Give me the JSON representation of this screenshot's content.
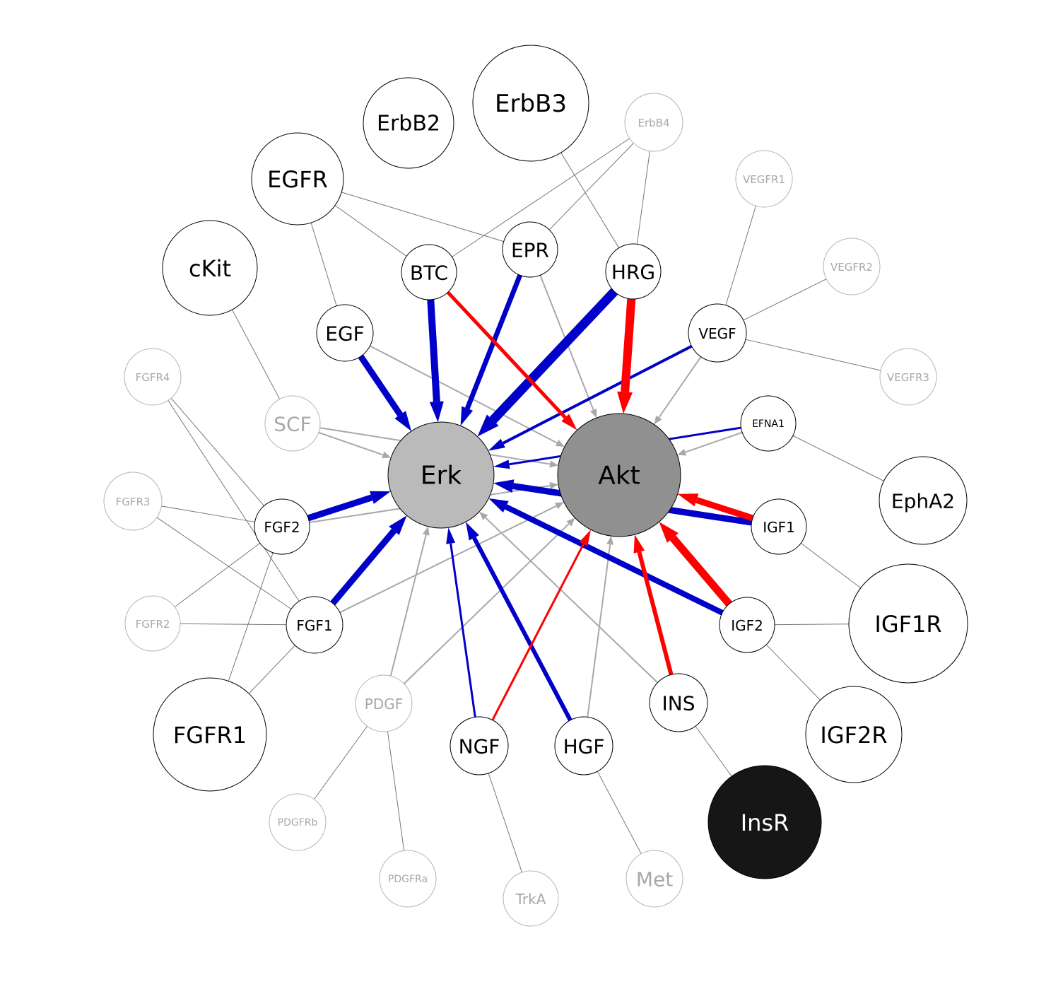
{
  "colors": {
    "blue": "#0000c8",
    "red": "#ff0000",
    "gray_edge": "#a8a8a8",
    "thin_edge": "#777777",
    "node_stroke": "#000000",
    "faded_stroke": "#b4b4b4",
    "faded_text": "#a8a8a8",
    "erk_fill": "#bababa",
    "akt_fill": "#909090",
    "insr_fill": "#161616"
  },
  "nodes": [
    {
      "id": "Erk",
      "label": "Erk",
      "style": "erk"
    },
    {
      "id": "Akt",
      "label": "Akt",
      "style": "akt"
    },
    {
      "id": "ErbB2",
      "label": "ErbB2",
      "style": "normal"
    },
    {
      "id": "ErbB3",
      "label": "ErbB3",
      "style": "normal"
    },
    {
      "id": "ErbB4",
      "label": "ErbB4",
      "style": "faded"
    },
    {
      "id": "EGFR",
      "label": "EGFR",
      "style": "normal"
    },
    {
      "id": "cKit",
      "label": "cKit",
      "style": "normal"
    },
    {
      "id": "BTC",
      "label": "BTC",
      "style": "normal"
    },
    {
      "id": "EPR",
      "label": "EPR",
      "style": "normal"
    },
    {
      "id": "HRG",
      "label": "HRG",
      "style": "normal"
    },
    {
      "id": "EGF",
      "label": "EGF",
      "style": "normal"
    },
    {
      "id": "VEGF",
      "label": "VEGF",
      "style": "normal"
    },
    {
      "id": "VEGFR1",
      "label": "VEGFR1",
      "style": "faded"
    },
    {
      "id": "VEGFR2",
      "label": "VEGFR2",
      "style": "faded"
    },
    {
      "id": "VEGFR3",
      "label": "VEGFR3",
      "style": "faded"
    },
    {
      "id": "EFNA1",
      "label": "EFNA1",
      "style": "normal"
    },
    {
      "id": "EphA2",
      "label": "EphA2",
      "style": "normal"
    },
    {
      "id": "FGFR4",
      "label": "FGFR4",
      "style": "faded"
    },
    {
      "id": "SCF",
      "label": "SCF",
      "style": "faded"
    },
    {
      "id": "FGFR3",
      "label": "FGFR3",
      "style": "faded"
    },
    {
      "id": "FGF2",
      "label": "FGF2",
      "style": "normal"
    },
    {
      "id": "IGF1",
      "label": "IGF1",
      "style": "normal"
    },
    {
      "id": "FGFR2",
      "label": "FGFR2",
      "style": "faded"
    },
    {
      "id": "FGF1",
      "label": "FGF1",
      "style": "normal"
    },
    {
      "id": "IGF2",
      "label": "IGF2",
      "style": "normal"
    },
    {
      "id": "IGF1R",
      "label": "IGF1R",
      "style": "normal"
    },
    {
      "id": "FGFR1",
      "label": "FGFR1",
      "style": "normal"
    },
    {
      "id": "PDGF",
      "label": "PDGF",
      "style": "faded"
    },
    {
      "id": "NGF",
      "label": "NGF",
      "style": "normal"
    },
    {
      "id": "HGF",
      "label": "HGF",
      "style": "normal"
    },
    {
      "id": "INS",
      "label": "INS",
      "style": "normal"
    },
    {
      "id": "IGF2R",
      "label": "IGF2R",
      "style": "normal"
    },
    {
      "id": "InsR",
      "label": "InsR",
      "style": "dark"
    },
    {
      "id": "PDGFRb",
      "label": "PDGFRb",
      "style": "faded"
    },
    {
      "id": "PDGFRa",
      "label": "PDGFRa",
      "style": "faded"
    },
    {
      "id": "TrkA",
      "label": "TrkA",
      "style": "faded"
    },
    {
      "id": "Met",
      "label": "Met",
      "style": "faded"
    }
  ],
  "edges": [
    {
      "from": "EGFR",
      "to": "BTC",
      "kind": "line"
    },
    {
      "from": "EGFR",
      "to": "EPR",
      "kind": "line"
    },
    {
      "from": "EGFR",
      "to": "EGF",
      "kind": "line"
    },
    {
      "from": "ErbB4",
      "to": "BTC",
      "kind": "line"
    },
    {
      "from": "ErbB4",
      "to": "EPR",
      "kind": "line"
    },
    {
      "from": "ErbB4",
      "to": "HRG",
      "kind": "line"
    },
    {
      "from": "ErbB3",
      "to": "HRG",
      "kind": "line"
    },
    {
      "from": "cKit",
      "to": "SCF",
      "kind": "line"
    },
    {
      "from": "VEGFR1",
      "to": "VEGF",
      "kind": "line"
    },
    {
      "from": "VEGFR2",
      "to": "VEGF",
      "kind": "line"
    },
    {
      "from": "VEGFR3",
      "to": "VEGF",
      "kind": "line"
    },
    {
      "from": "EFNA1",
      "to": "EphA2",
      "kind": "line"
    },
    {
      "from": "FGFR4",
      "to": "FGF2",
      "kind": "line"
    },
    {
      "from": "FGFR4",
      "to": "FGF1",
      "kind": "line"
    },
    {
      "from": "FGFR3",
      "to": "FGF2",
      "kind": "line"
    },
    {
      "from": "FGFR3",
      "to": "FGF1",
      "kind": "line"
    },
    {
      "from": "FGFR2",
      "to": "FGF2",
      "kind": "line"
    },
    {
      "from": "FGFR2",
      "to": "FGF1",
      "kind": "line"
    },
    {
      "from": "FGFR1",
      "to": "FGF2",
      "kind": "line"
    },
    {
      "from": "FGFR1",
      "to": "FGF1",
      "kind": "line"
    },
    {
      "from": "IGF1",
      "to": "IGF1R",
      "kind": "line"
    },
    {
      "from": "IGF2",
      "to": "IGF1R",
      "kind": "line"
    },
    {
      "from": "IGF2",
      "to": "IGF2R",
      "kind": "line"
    },
    {
      "from": "INS",
      "to": "InsR",
      "kind": "line"
    },
    {
      "from": "PDGF",
      "to": "PDGFRb",
      "kind": "line"
    },
    {
      "from": "PDGF",
      "to": "PDGFRa",
      "kind": "line"
    },
    {
      "from": "NGF",
      "to": "TrkA",
      "kind": "line"
    },
    {
      "from": "HGF",
      "to": "Met",
      "kind": "line"
    },
    {
      "from": "EGF",
      "to": "Akt",
      "kind": "gray"
    },
    {
      "from": "EPR",
      "to": "Akt",
      "kind": "gray"
    },
    {
      "from": "VEGF",
      "to": "Akt",
      "kind": "gray"
    },
    {
      "from": "EFNA1",
      "to": "Akt",
      "kind": "gray"
    },
    {
      "from": "SCF",
      "to": "Erk",
      "kind": "gray"
    },
    {
      "from": "SCF",
      "to": "Akt",
      "kind": "gray"
    },
    {
      "from": "FGF2",
      "to": "Akt",
      "kind": "gray"
    },
    {
      "from": "FGF1",
      "to": "Akt",
      "kind": "gray"
    },
    {
      "from": "PDGF",
      "to": "Erk",
      "kind": "gray"
    },
    {
      "from": "PDGF",
      "to": "Akt",
      "kind": "gray"
    },
    {
      "from": "INS",
      "to": "Erk",
      "kind": "gray"
    },
    {
      "from": "HGF",
      "to": "Akt",
      "kind": "gray"
    },
    {
      "from": "EGF",
      "to": "Erk",
      "kind": "blue",
      "weight": 9
    },
    {
      "from": "BTC",
      "to": "Erk",
      "kind": "blue",
      "weight": 10
    },
    {
      "from": "EPR",
      "to": "Erk",
      "kind": "blue",
      "weight": 7
    },
    {
      "from": "HRG",
      "to": "Erk",
      "kind": "blue",
      "weight": 13
    },
    {
      "from": "VEGF",
      "to": "Erk",
      "kind": "blue",
      "weight": 4
    },
    {
      "from": "EFNA1",
      "to": "Erk",
      "kind": "blue",
      "weight": 3
    },
    {
      "from": "IGF1",
      "to": "Erk",
      "kind": "blue",
      "weight": 9
    },
    {
      "from": "IGF2",
      "to": "Erk",
      "kind": "blue",
      "weight": 8
    },
    {
      "from": "FGF2",
      "to": "Erk",
      "kind": "blue",
      "weight": 9
    },
    {
      "from": "FGF1",
      "to": "Erk",
      "kind": "blue",
      "weight": 9
    },
    {
      "from": "NGF",
      "to": "Erk",
      "kind": "blue",
      "weight": 3
    },
    {
      "from": "HGF",
      "to": "Erk",
      "kind": "blue",
      "weight": 6
    },
    {
      "from": "BTC",
      "to": "Akt",
      "kind": "red",
      "weight": 5
    },
    {
      "from": "HRG",
      "to": "Akt",
      "kind": "red",
      "weight": 12
    },
    {
      "from": "IGF1",
      "to": "Akt",
      "kind": "red",
      "weight": 9
    },
    {
      "from": "IGF2",
      "to": "Akt",
      "kind": "red",
      "weight": 11
    },
    {
      "from": "INS",
      "to": "Akt",
      "kind": "red",
      "weight": 6
    },
    {
      "from": "NGF",
      "to": "Akt",
      "kind": "red",
      "weight": 3
    }
  ]
}
